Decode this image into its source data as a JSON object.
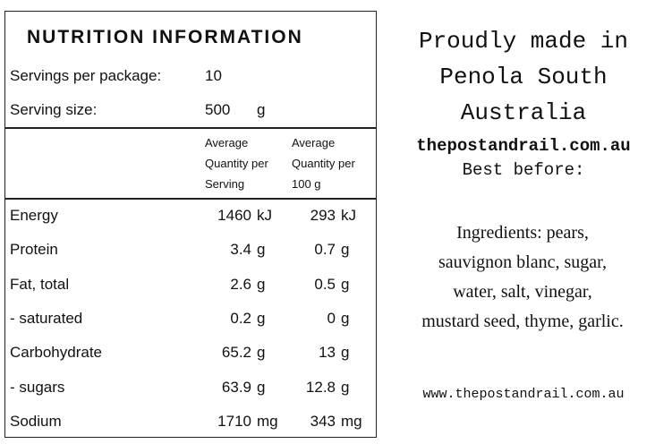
{
  "table": {
    "title": "NUTRITION INFORMATION",
    "servings": {
      "label": "Servings per package:",
      "value": 10
    },
    "serving_size": {
      "label": "Serving size:",
      "value": 500,
      "unit": "g"
    },
    "columns": [
      [
        "Average",
        "Quantity per",
        "Serving"
      ],
      [
        "Average",
        "Quantity per",
        "100 g"
      ]
    ],
    "rows": [
      [
        "Energy",
        1460,
        "kJ",
        293,
        "kJ"
      ],
      [
        "Protein",
        3.4,
        "g",
        0.7,
        "g"
      ],
      [
        "Fat, total",
        2.6,
        "g",
        0.5,
        "g"
      ],
      [
        "- saturated",
        0.2,
        "g",
        0,
        "g"
      ],
      [
        "Carbohydrate",
        65.2,
        "g",
        13,
        "g"
      ],
      [
        "- sugars",
        63.9,
        "g",
        12.8,
        "g"
      ],
      [
        "Sodium",
        1710,
        "mg",
        343,
        "mg"
      ]
    ]
  },
  "side": {
    "origin": [
      "Proudly made in",
      "Penola South",
      "Australia"
    ],
    "website": "thepostandrail.com.au",
    "best_before": "Best before:",
    "ingredients": [
      "Ingredients: pears,",
      "sauvignon blanc, sugar,",
      "water, salt, vinegar,",
      "mustard seed, thyme, garlic."
    ],
    "url": "www.thepostandrail.com.au"
  }
}
